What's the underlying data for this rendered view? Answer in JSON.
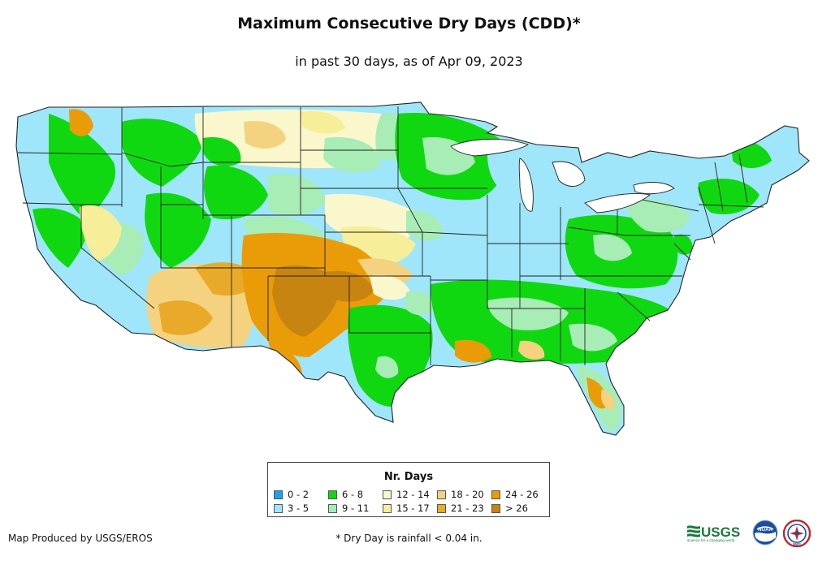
{
  "title": "Maximum Consecutive Dry Days (CDD)*",
  "subtitle": "in past 30 days, as of Apr 09, 2023",
  "legend": {
    "title": "Nr. Days",
    "items": [
      {
        "label": "0 - 2",
        "color": "#1ea0ee"
      },
      {
        "label": "3 - 5",
        "color": "#9fe6fb"
      },
      {
        "label": "6 - 8",
        "color": "#10d810"
      },
      {
        "label": "9 - 11",
        "color": "#a8ecb6"
      },
      {
        "label": "12 - 14",
        "color": "#fbf7cc"
      },
      {
        "label": "15 - 17",
        "color": "#f6ee98"
      },
      {
        "label": "18 - 20",
        "color": "#f4d280"
      },
      {
        "label": "21 - 23",
        "color": "#e8aa28"
      },
      {
        "label": "24 - 26",
        "color": "#ea9c08"
      },
      {
        "label": "> 26",
        "color": "#c88410"
      }
    ]
  },
  "credit": "Map Produced by USGS/EROS",
  "footnote": "* Dry Day is rainfall < 0.04 in.",
  "logos": {
    "usgs": "USGS",
    "usgs_tagline": "science for a changing world",
    "noaa": "NOAA",
    "nws": "NWS"
  }
}
